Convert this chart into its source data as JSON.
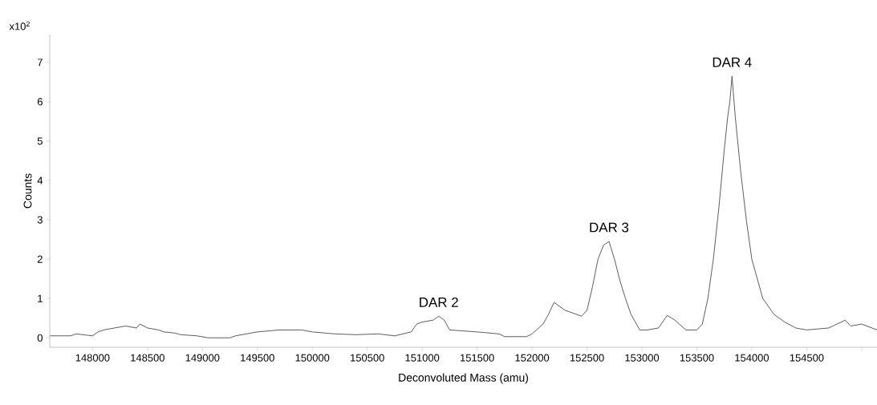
{
  "chart_data": {
    "type": "line",
    "xlabel": "Deconvoluted Mass (amu)",
    "ylabel": "Counts",
    "annotations": [
      "x10$^{2}$",
      {
        "text": "DAR 2",
        "x": 151150,
        "y": 0.55
      },
      {
        "text": "DAR 3",
        "x": 152700,
        "y": 2.45
      },
      {
        "text": "DAR 4",
        "x": 153820,
        "y": 6.65
      }
    ],
    "xlim": [
      147610,
      155140
    ],
    "ylim": [
      -0.24,
      7.71
    ],
    "xticks": [
      148000,
      148500,
      149000,
      149500,
      150000,
      150500,
      151000,
      151500,
      152000,
      152500,
      153000,
      153500,
      154000,
      154500,
      {
        "value": 155000,
        "label": null
      }
    ],
    "yticks": [
      0,
      1,
      2,
      3,
      4,
      5,
      6,
      7
    ],
    "marker": "none",
    "line_style": "solid",
    "x": [
      147613,
      147800,
      147850,
      148000,
      148050,
      148100,
      148200,
      148300,
      148400,
      148430,
      148500,
      148600,
      148650,
      148750,
      148800,
      148950,
      149050,
      149250,
      149300,
      149500,
      149700,
      149900,
      150000,
      150200,
      150400,
      150600,
      150750,
      150900,
      150950,
      151000,
      151100,
      151150,
      151200,
      151250,
      151500,
      151700,
      151750,
      151950,
      152000,
      152100,
      152150,
      152200,
      152250,
      152300,
      152400,
      152450,
      152500,
      152550,
      152600,
      152650,
      152700,
      152750,
      152800,
      152850,
      152900,
      152980,
      153050,
      153150,
      153230,
      153300,
      153400,
      153500,
      153550,
      153600,
      153650,
      153700,
      153750,
      153780,
      153800,
      153820,
      153850,
      153900,
      153950,
      154000,
      154050,
      154100,
      154200,
      154300,
      154400,
      154500,
      154700,
      154850,
      154900,
      155000,
      155140
    ],
    "series": [
      {
        "color": "#333333",
        "values": [
          0.05,
          0.05,
          0.1,
          0.05,
          0.15,
          0.2,
          0.25,
          0.3,
          0.25,
          0.35,
          0.25,
          0.2,
          0.15,
          0.12,
          0.08,
          0.05,
          0,
          0,
          0.05,
          0.15,
          0.2,
          0.2,
          0.15,
          0.1,
          0.08,
          0.1,
          0.05,
          0.15,
          0.35,
          0.4,
          0.45,
          0.55,
          0.45,
          0.2,
          0.15,
          0.1,
          0.03,
          0.03,
          0.1,
          0.35,
          0.6,
          0.9,
          0.8,
          0.7,
          0.6,
          0.55,
          0.7,
          1.3,
          2.0,
          2.35,
          2.45,
          2.0,
          1.45,
          1.0,
          0.6,
          0.2,
          0.2,
          0.25,
          0.57,
          0.45,
          0.2,
          0.2,
          0.35,
          1.0,
          2.0,
          3.3,
          4.8,
          5.6,
          6.0,
          6.65,
          5.6,
          4.2,
          3.0,
          2.0,
          1.5,
          1.0,
          0.6,
          0.4,
          0.25,
          0.2,
          0.25,
          0.45,
          0.3,
          0.35,
          0.2
        ]
      }
    ]
  }
}
